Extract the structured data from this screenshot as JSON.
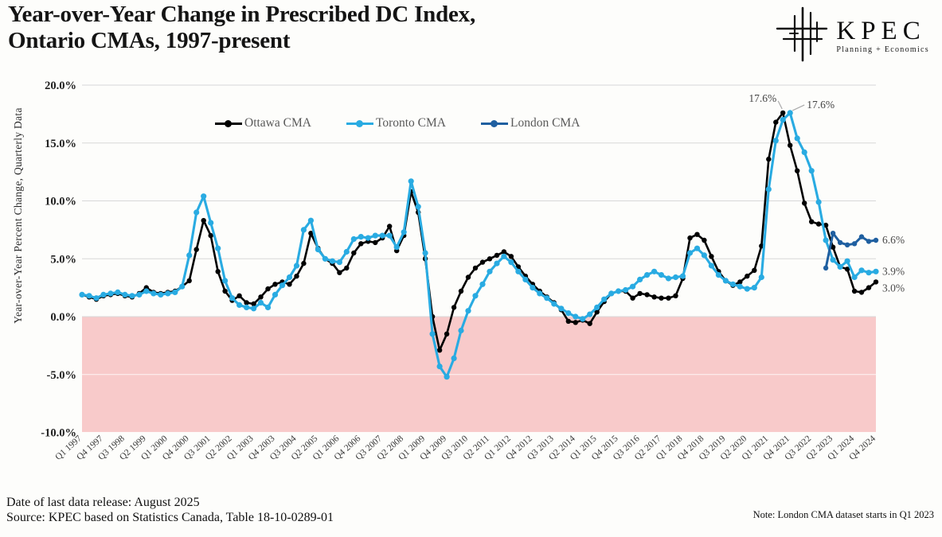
{
  "header": {
    "title_line1": "Year-over-Year Change in Prescribed DC Index,",
    "title_line2": "Ontario CMAs, 1997-present",
    "logo": {
      "name": "KPEC",
      "tagline": "Planning + Economics"
    }
  },
  "footer": {
    "release": "Date of last data release: August 2025",
    "source": "Source: KPEC based on  Statistics Canada, Table 18-10-0289-01",
    "note": "Note: London CMA dataset starts in Q1 2023"
  },
  "chart_data": {
    "type": "line",
    "title": "Year-over-Year Change in Prescribed DC Index, Ontario CMAs, 1997-present",
    "ylabel": "Year-over-Year Percent Change, Quarterly Data",
    "ylim": [
      -10,
      20
    ],
    "grid": true,
    "legend_position": "top-center",
    "y_ticks": [
      20,
      15,
      10,
      5,
      0,
      -5,
      -10
    ],
    "y_tick_labels": [
      "20.0%",
      "15.0%",
      "10.0%",
      "5.0%",
      "0.0%",
      "-5.0%",
      "-10.0%"
    ],
    "x_tick_every": 3,
    "quarters_total": 112,
    "x_tick_labels": [
      "Q1 1997",
      "Q4 1997",
      "Q3 1998",
      "Q2 1999",
      "Q1 2000",
      "Q4 2000",
      "Q3 2001",
      "Q2 2002",
      "Q1 2003",
      "Q4 2003",
      "Q3 2004",
      "Q2 2005",
      "Q1 2006",
      "Q4 2006",
      "Q3 2007",
      "Q2 2008",
      "Q1 2009",
      "Q4 2009",
      "Q3 2010",
      "Q2 2011",
      "Q1 2012",
      "Q4 2012",
      "Q3 2013",
      "Q2 2014",
      "Q1 2015",
      "Q4 2015",
      "Q3 2016",
      "Q2 2017",
      "Q1 2018",
      "Q4 2018",
      "Q3 2019",
      "Q2 2020",
      "Q1 2021",
      "Q4 2021",
      "Q3 2022",
      "Q2 2023",
      "Q1 2024",
      "Q4 2024"
    ],
    "band_color": "#F8CACA",
    "grid_color": "#D8D8D8",
    "series": [
      {
        "name": "Ottawa CMA",
        "color": "#000000",
        "line_width": 2.6,
        "dot_radius": 3.2,
        "start_index": 0,
        "values": [
          1.9,
          1.7,
          1.5,
          1.8,
          1.9,
          2.0,
          1.8,
          1.7,
          2.0,
          2.5,
          2.1,
          2.0,
          2.1,
          2.2,
          2.6,
          3.1,
          5.8,
          8.3,
          7.0,
          3.9,
          2.2,
          1.4,
          1.8,
          1.2,
          1.1,
          1.7,
          2.4,
          2.8,
          3.0,
          2.8,
          3.5,
          4.6,
          7.2,
          5.9,
          5.0,
          4.6,
          3.8,
          4.2,
          5.5,
          6.3,
          6.5,
          6.4,
          6.8,
          7.8,
          5.7,
          7.0,
          10.8,
          9.0,
          5.0,
          0.0,
          -2.9,
          -1.5,
          0.8,
          2.2,
          3.4,
          4.2,
          4.7,
          5.0,
          5.3,
          5.6,
          5.2,
          4.3,
          3.5,
          2.8,
          2.2,
          1.7,
          1.2,
          0.6,
          -0.4,
          -0.5,
          -0.3,
          -0.6,
          0.4,
          1.3,
          2.0,
          2.2,
          2.2,
          1.6,
          2.0,
          1.9,
          1.7,
          1.6,
          1.6,
          1.8,
          3.3,
          6.8,
          7.1,
          6.6,
          5.2,
          3.9,
          3.1,
          2.7,
          3.0,
          3.5,
          4.0,
          6.1,
          13.6,
          16.8,
          17.6,
          14.8,
          12.6,
          9.8,
          8.2,
          8.0,
          7.9,
          6.0,
          4.3,
          4.1,
          2.2,
          2.1,
          2.5,
          3.0
        ]
      },
      {
        "name": "Toronto CMA",
        "color": "#29ABE2",
        "line_width": 3.1,
        "dot_radius": 3.6,
        "start_index": 0,
        "values": [
          1.9,
          1.8,
          1.6,
          1.9,
          2.0,
          2.1,
          1.9,
          1.8,
          1.9,
          2.2,
          2.0,
          1.9,
          2.0,
          2.1,
          2.6,
          5.3,
          9.0,
          10.4,
          8.1,
          5.9,
          3.1,
          1.6,
          1.0,
          0.8,
          0.7,
          1.2,
          0.8,
          1.9,
          2.7,
          3.4,
          4.4,
          7.5,
          8.3,
          5.8,
          5.0,
          4.8,
          4.7,
          5.6,
          6.7,
          6.9,
          6.8,
          7.0,
          7.0,
          7.0,
          6.0,
          7.3,
          11.7,
          9.5,
          5.5,
          -1.5,
          -4.3,
          -5.2,
          -3.6,
          -1.2,
          0.5,
          1.8,
          2.8,
          3.9,
          4.6,
          5.2,
          4.7,
          3.9,
          3.2,
          2.5,
          2.0,
          1.6,
          1.1,
          0.7,
          0.3,
          0.0,
          -0.2,
          0.2,
          0.8,
          1.5,
          2.0,
          2.2,
          2.3,
          2.6,
          3.2,
          3.6,
          3.9,
          3.6,
          3.3,
          3.4,
          3.5,
          5.5,
          5.9,
          5.3,
          4.4,
          3.6,
          3.1,
          2.8,
          2.6,
          2.4,
          2.5,
          3.4,
          11.0,
          15.2,
          17.0,
          17.6,
          15.4,
          14.2,
          12.6,
          9.9,
          6.6,
          4.9,
          4.3,
          4.8,
          3.4,
          4.0,
          3.8,
          3.9
        ]
      },
      {
        "name": "London CMA",
        "color": "#1F5FA0",
        "line_width": 3.0,
        "dot_radius": 3.2,
        "start_index": 104,
        "values": [
          4.2,
          7.2,
          6.4,
          6.2,
          6.3,
          6.9,
          6.5,
          6.6
        ]
      }
    ],
    "annotations": [
      {
        "text": "17.6%",
        "q": 98,
        "v": 17.6,
        "side": "left",
        "series": "Ottawa CMA"
      },
      {
        "text": "17.6%",
        "q": 99,
        "v": 17.6,
        "side": "right",
        "series": "Toronto CMA"
      }
    ],
    "end_labels": [
      {
        "text": "6.6%",
        "v": 6.6,
        "series": "London CMA"
      },
      {
        "text": "3.9%",
        "v": 3.9,
        "series": "Toronto CMA"
      },
      {
        "text": "3.0%",
        "v": 3.0,
        "series": "Ottawa CMA"
      }
    ]
  }
}
